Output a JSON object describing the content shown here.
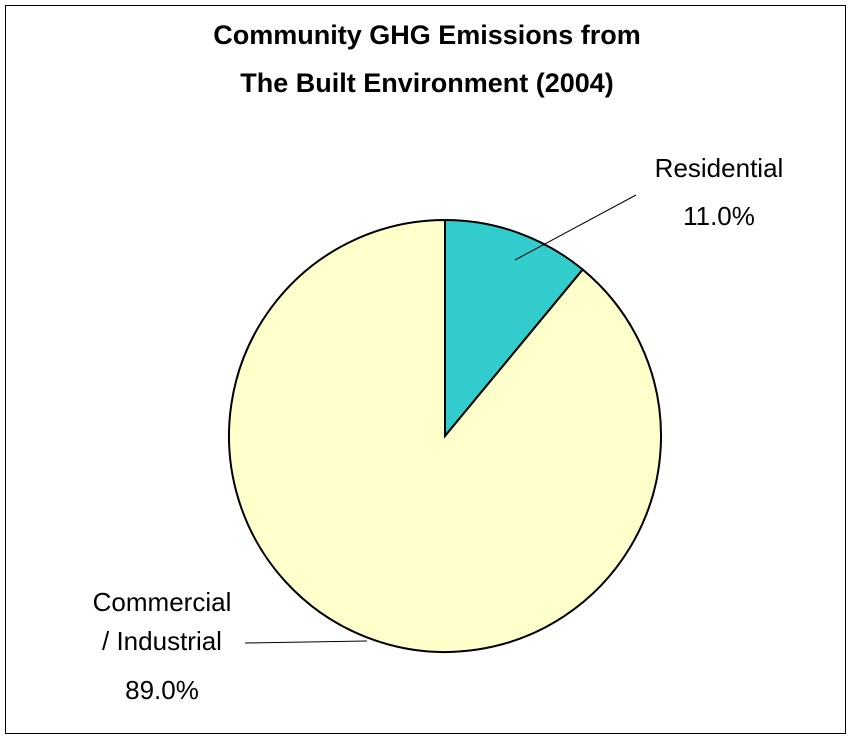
{
  "chart_data": {
    "type": "pie",
    "title_lines": [
      "Community GHG Emissions from",
      "The Built Environment (2004)"
    ],
    "slices": [
      {
        "name": "Residential",
        "value": 11.0,
        "label_lines": [
          "Residential"
        ],
        "value_label": "11.0%",
        "color": "#33CCCC"
      },
      {
        "name": "Commercial / Industrial",
        "value": 89.0,
        "label_lines": [
          "Commercial",
          "/ Industrial"
        ],
        "value_label": "89.0%",
        "color": "#FFFFCC"
      }
    ],
    "start_angle": "12 o'clock",
    "direction": "clockwise",
    "legend": "none",
    "label_style": "outside with leader lines"
  }
}
